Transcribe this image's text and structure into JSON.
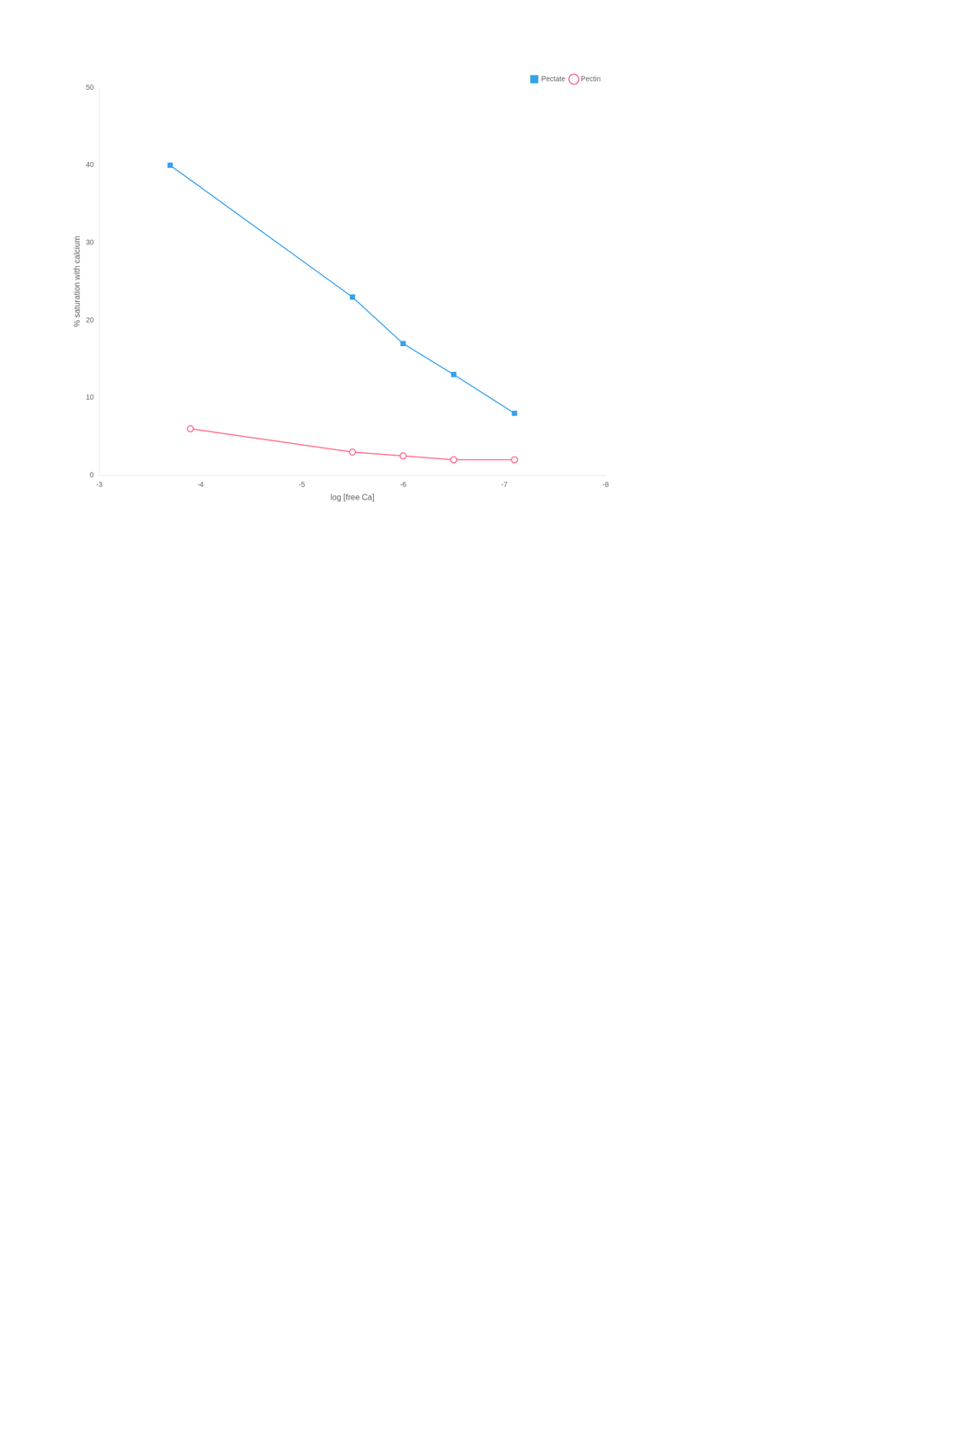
{
  "chart_data": {
    "type": "line",
    "x_label": "log [free Ca]",
    "y_label": "% saturation with calcium",
    "series": [
      {
        "name": "Pectate",
        "x": [
          -3.7,
          -5.5,
          -6.0,
          -6.5,
          -7.1
        ],
        "values": [
          40,
          23,
          17,
          13,
          8
        ],
        "marker": "square"
      },
      {
        "name": "Pectin",
        "x": [
          -3.9,
          -5.5,
          -6.0,
          -6.5,
          -7.1
        ],
        "values": [
          6,
          3,
          2.5,
          2,
          2
        ],
        "marker": "circle"
      }
    ],
    "xlim": [
      -3,
      -8
    ],
    "ylim": [
      0,
      50
    ],
    "xticks": [
      -3,
      -4,
      -5,
      -6,
      -7,
      -8
    ],
    "yticks": [
      0,
      10,
      20,
      30,
      40,
      50
    ],
    "grid": false,
    "legend": "upper right"
  }
}
